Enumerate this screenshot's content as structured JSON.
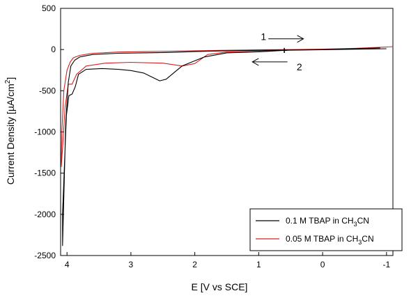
{
  "chart_data": {
    "type": "line",
    "title": "",
    "xlabel": "E [V vs SCE]",
    "ylabel": "Current Density [µA/cm²]",
    "ylabel_parts": {
      "main": "Current Density [µA/cm",
      "sup": "2",
      "close": "]"
    },
    "x_inverted": true,
    "xlim": [
      4.1,
      -1.1
    ],
    "ylim": [
      -2500,
      500
    ],
    "xticks": [
      4,
      3,
      2,
      1,
      0,
      -1
    ],
    "xtick_labels": [
      "4",
      "3",
      "2",
      "1",
      "0",
      "-1"
    ],
    "yticks": [
      500,
      0,
      -500,
      -1000,
      -1500,
      -2000,
      -2500
    ],
    "ytick_labels": [
      "500",
      "0",
      "-500",
      "-1000",
      "-1500",
      "-2000",
      "-2500"
    ],
    "grid": false,
    "legend_position": "bottom-right",
    "legend_labels": [
      {
        "prefix": "0.1 M TBAP in CH",
        "sub1": "3",
        "suffix": "CN"
      },
      {
        "prefix": "0.05 M TBAP in CH",
        "sub1": "3",
        "suffix": "CN"
      }
    ],
    "series": [
      {
        "name": "0.1 M TBAP in CH3CN",
        "color": "#000000",
        "x": [
          -1.0,
          -0.5,
          0.0,
          0.5,
          0.6,
          0.6,
          1.0,
          1.5,
          1.85,
          2.2,
          2.45,
          2.55,
          2.8,
          3.0,
          3.2,
          3.45,
          3.7,
          3.82,
          3.87,
          3.92,
          3.97,
          4.01,
          4.04,
          4.07,
          4.07,
          4.05,
          4.02,
          3.98,
          3.94,
          3.88,
          3.8,
          3.6,
          3.2,
          2.8,
          2.4,
          2.0,
          1.5,
          1.0,
          0.5,
          0.0,
          -0.5,
          -0.9
        ],
        "y": [
          10,
          4,
          -3,
          -8,
          -10,
          -10,
          -28,
          -40,
          -90,
          -200,
          -360,
          -380,
          -285,
          -255,
          -240,
          -230,
          -240,
          -300,
          -450,
          -540,
          -560,
          -800,
          -1400,
          -2000,
          -2380,
          -1800,
          -900,
          -400,
          -200,
          -130,
          -90,
          -60,
          -45,
          -40,
          -35,
          -25,
          -15,
          -10,
          -5,
          0,
          10,
          20
        ],
        "values": [
          10,
          4,
          -3,
          -8,
          -10,
          -10,
          -28,
          -40,
          -90,
          -200,
          -360,
          -380,
          -285,
          -255,
          -240,
          -230,
          -240,
          -300,
          -450,
          -540,
          -560,
          -800,
          -1400,
          -2000,
          -2380,
          -1800,
          -900,
          -400,
          -200,
          -130,
          -90,
          -60,
          -45,
          -40,
          -35,
          -25,
          -15,
          -10,
          -5,
          0,
          10,
          20
        ]
      },
      {
        "name": "0.05 M TBAP in CH3CN",
        "color": "#d42020",
        "x": [
          -1.1,
          -0.5,
          0.0,
          0.5,
          1.0,
          1.5,
          1.8,
          2.0,
          2.2,
          2.5,
          3.0,
          3.4,
          3.7,
          3.85,
          3.92,
          3.98,
          4.03,
          4.07,
          4.09,
          4.08,
          4.05,
          4.0,
          3.95,
          3.9,
          3.8,
          3.6,
          3.2,
          2.8,
          2.4,
          2.0,
          1.6,
          1.2,
          1.0,
          0.5,
          0.0,
          -0.5,
          -1.0
        ],
        "y": [
          35,
          10,
          0,
          -5,
          -20,
          -30,
          -60,
          -170,
          -200,
          -165,
          -155,
          -165,
          -200,
          -300,
          -420,
          -420,
          -700,
          -1200,
          -1420,
          -1000,
          -500,
          -250,
          -150,
          -100,
          -70,
          -45,
          -30,
          -25,
          -20,
          -15,
          -10,
          -5,
          -3,
          0,
          5,
          15,
          30
        ],
        "values": [
          35,
          10,
          0,
          -5,
          -20,
          -30,
          -60,
          -170,
          -200,
          -165,
          -155,
          -165,
          -200,
          -300,
          -420,
          -420,
          -700,
          -1200,
          -1420,
          -1000,
          -500,
          -250,
          -150,
          -100,
          -70,
          -45,
          -30,
          -25,
          -20,
          -15,
          -10,
          -5,
          -3,
          0,
          5,
          15,
          30
        ]
      }
    ],
    "annotations": [
      {
        "label": "1",
        "x": 0.85,
        "y": 150,
        "arrow_from_x": 0.85,
        "arrow_to_x": 0.3,
        "arrow_y": 130,
        "direction": "right"
      },
      {
        "label": "2",
        "x": 0.45,
        "y": -150,
        "arrow_from_x": 0.55,
        "arrow_to_x": 1.1,
        "arrow_y": -150,
        "direction": "left"
      },
      {
        "label": "+",
        "x": 0.6,
        "y": 0
      }
    ]
  }
}
